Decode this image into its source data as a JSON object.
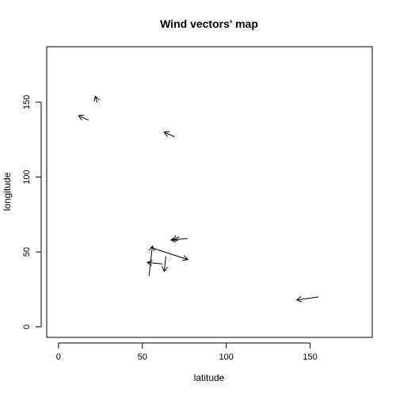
{
  "chart_data": {
    "type": "scatter",
    "title": "Wind vectors' map",
    "xlabel": "latitude",
    "ylabel": "longitude",
    "xlim": [
      -7,
      187
    ],
    "ylim": [
      -7,
      187
    ],
    "xticks": [
      0,
      50,
      100,
      150
    ],
    "yticks": [
      0,
      50,
      100,
      150
    ],
    "grid": false,
    "vectors": [
      {
        "x0": 54,
        "y0": 34,
        "x1": 56,
        "y1": 54
      },
      {
        "x0": 55,
        "y0": 53,
        "x1": 77,
        "y1": 45
      },
      {
        "x0": 64,
        "y0": 47,
        "x1": 63,
        "y1": 37
      },
      {
        "x0": 62,
        "y0": 42,
        "x1": 53,
        "y1": 43
      },
      {
        "x0": 77,
        "y0": 59,
        "x1": 67,
        "y1": 58
      },
      {
        "x0": 72,
        "y0": 60,
        "x1": 68,
        "y1": 58
      },
      {
        "x0": 155,
        "y0": 20,
        "x1": 142,
        "y1": 18
      },
      {
        "x0": 69,
        "y0": 127,
        "x1": 63,
        "y1": 130
      },
      {
        "x0": 18,
        "y0": 138,
        "x1": 12,
        "y1": 141
      },
      {
        "x0": 23,
        "y0": 150,
        "x1": 22,
        "y1": 154
      }
    ]
  }
}
